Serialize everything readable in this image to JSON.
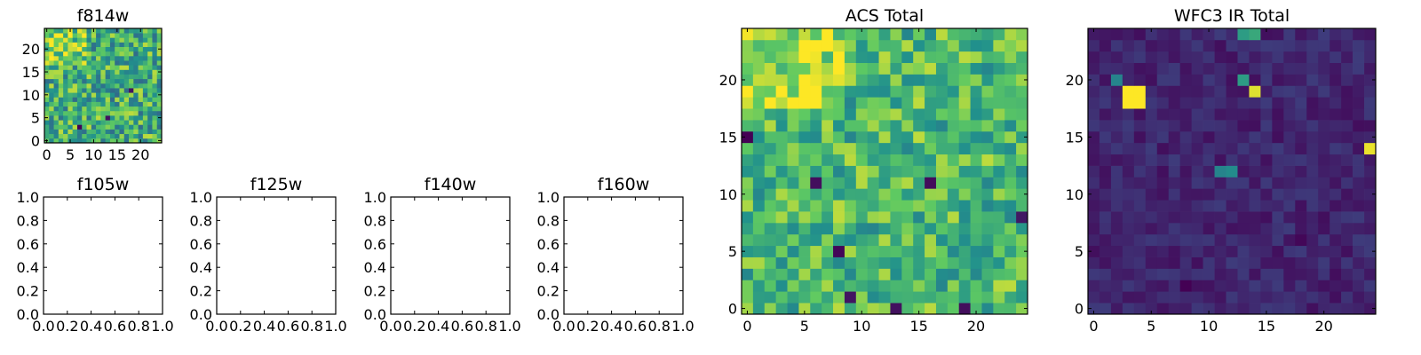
{
  "figure": {
    "colormap": "viridis",
    "colors": {
      "low": "#440154",
      "mid": "#21918c",
      "high": "#fde725",
      "axis": "#000000",
      "background": "#ffffff"
    }
  },
  "chart_data": [
    {
      "id": "f814w",
      "type": "heatmap",
      "title": "f814w",
      "xlim": [
        -0.5,
        24.5
      ],
      "ylim": [
        -0.5,
        24.5
      ],
      "xticks": [
        0,
        5,
        10,
        15,
        20
      ],
      "yticks": [
        0,
        5,
        10,
        15,
        20
      ],
      "xtick_labels": [
        "0",
        "5",
        "10",
        "15",
        "20"
      ],
      "ytick_labels": [
        "0",
        "5",
        "10",
        "15",
        "20"
      ],
      "grid_size": [
        25,
        25
      ],
      "value_range": [
        0,
        1
      ],
      "pattern": "mostly mid-to-high values with a few low pixels; brighter top-left corner",
      "bright_spots": [
        {
          "x": 3,
          "y": 23,
          "value": 1.0
        },
        {
          "x": 4,
          "y": 22,
          "value": 0.96
        },
        {
          "x": 5,
          "y": 21,
          "value": 0.92
        }
      ],
      "dark_spots": [
        {
          "x": 7,
          "y": 3,
          "value": 0.0
        },
        {
          "x": 13,
          "y": 5,
          "value": 0.05
        },
        {
          "x": 18,
          "y": 11,
          "value": 0.06
        }
      ]
    },
    {
      "id": "f105w",
      "type": "heatmap",
      "title": "f105w",
      "xlim": [
        0,
        1
      ],
      "ylim": [
        0,
        1
      ],
      "xticks": [
        0,
        0.2,
        0.4,
        0.6,
        0.8,
        1.0
      ],
      "yticks": [
        0,
        0.2,
        0.4,
        0.6,
        0.8,
        1.0
      ],
      "xtick_labels": [
        "0.0",
        "0.2",
        "0.4",
        "0.6",
        "0.8",
        "1.0"
      ],
      "ytick_labels": [
        "0.0",
        "0.2",
        "0.4",
        "0.6",
        "0.8",
        "1.0"
      ],
      "empty": true
    },
    {
      "id": "f125w",
      "type": "heatmap",
      "title": "f125w",
      "xlim": [
        0,
        1
      ],
      "ylim": [
        0,
        1
      ],
      "xticks": [
        0,
        0.2,
        0.4,
        0.6,
        0.8,
        1.0
      ],
      "yticks": [
        0,
        0.2,
        0.4,
        0.6,
        0.8,
        1.0
      ],
      "xtick_labels": [
        "0.0",
        "0.2",
        "0.4",
        "0.6",
        "0.8",
        "1.0"
      ],
      "ytick_labels": [
        "0.0",
        "0.2",
        "0.4",
        "0.6",
        "0.8",
        "1.0"
      ],
      "empty": true
    },
    {
      "id": "f140w",
      "type": "heatmap",
      "title": "f140w",
      "xlim": [
        0,
        1
      ],
      "ylim": [
        0,
        1
      ],
      "xticks": [
        0,
        0.2,
        0.4,
        0.6,
        0.8,
        1.0
      ],
      "yticks": [
        0,
        0.2,
        0.4,
        0.6,
        0.8,
        1.0
      ],
      "xtick_labels": [
        "0.0",
        "0.2",
        "0.4",
        "0.6",
        "0.8",
        "1.0"
      ],
      "ytick_labels": [
        "0.0",
        "0.2",
        "0.4",
        "0.6",
        "0.8",
        "1.0"
      ],
      "empty": true
    },
    {
      "id": "f160w",
      "type": "heatmap",
      "title": "f160w",
      "xlim": [
        0,
        1
      ],
      "ylim": [
        0,
        1
      ],
      "xticks": [
        0,
        0.2,
        0.4,
        0.6,
        0.8,
        1.0
      ],
      "yticks": [
        0,
        0.2,
        0.4,
        0.6,
        0.8,
        1.0
      ],
      "xtick_labels": [
        "0.0",
        "0.2",
        "0.4",
        "0.6",
        "0.8",
        "1.0"
      ],
      "ytick_labels": [
        "0.0",
        "0.2",
        "0.4",
        "0.6",
        "0.8",
        "1.0"
      ],
      "empty": true
    },
    {
      "id": "acs_total",
      "type": "heatmap",
      "title": "ACS Total",
      "xlim": [
        -0.5,
        24.5
      ],
      "ylim": [
        -0.5,
        24.5
      ],
      "xticks": [
        0,
        5,
        10,
        15,
        20
      ],
      "yticks": [
        0,
        5,
        10,
        15,
        20
      ],
      "xtick_labels": [
        "0",
        "5",
        "10",
        "15",
        "20"
      ],
      "ytick_labels": [
        "0",
        "5",
        "10",
        "15",
        "20"
      ],
      "grid_size": [
        25,
        25
      ],
      "value_range": [
        0,
        1
      ],
      "pattern": "mostly green/yellow with scattered dark pixels; bright cluster near top-left",
      "bright_spots": [
        {
          "x": 5,
          "y": 23,
          "value": 1.0
        },
        {
          "x": 6,
          "y": 22,
          "value": 0.98
        },
        {
          "x": 6,
          "y": 21,
          "value": 0.95
        },
        {
          "x": 7,
          "y": 20,
          "value": 0.92
        }
      ],
      "dark_spots": [
        {
          "x": 0,
          "y": 15,
          "value": 0.0
        },
        {
          "x": 6,
          "y": 11,
          "value": 0.04
        },
        {
          "x": 16,
          "y": 11,
          "value": 0.03
        },
        {
          "x": 8,
          "y": 5,
          "value": 0.02
        },
        {
          "x": 9,
          "y": 1,
          "value": 0.06
        },
        {
          "x": 13,
          "y": 0,
          "value": 0.05
        },
        {
          "x": 19,
          "y": 0,
          "value": 0.04
        },
        {
          "x": 24,
          "y": 8,
          "value": 0.07
        }
      ]
    },
    {
      "id": "wfc3_ir_total",
      "type": "heatmap",
      "title": "WFC3 IR Total",
      "xlim": [
        -0.5,
        24.5
      ],
      "ylim": [
        -0.5,
        24.5
      ],
      "xticks": [
        0,
        5,
        10,
        15,
        20
      ],
      "yticks": [
        0,
        5,
        10,
        15,
        20
      ],
      "xtick_labels": [
        "0",
        "5",
        "10",
        "15",
        "20"
      ],
      "ytick_labels": [
        "0",
        "5",
        "10",
        "15",
        "20"
      ],
      "grid_size": [
        25,
        25
      ],
      "value_range": [
        0,
        1
      ],
      "pattern": "dark purple background with several bright isolated spots",
      "bright_spots": [
        {
          "x": 3,
          "y": 19,
          "value": 1.0
        },
        {
          "x": 4,
          "y": 19,
          "value": 1.0
        },
        {
          "x": 3,
          "y": 18,
          "value": 1.0
        },
        {
          "x": 4,
          "y": 18,
          "value": 1.0
        },
        {
          "x": 2,
          "y": 20,
          "value": 0.45
        },
        {
          "x": 14,
          "y": 19,
          "value": 0.95
        },
        {
          "x": 13,
          "y": 20,
          "value": 0.55
        },
        {
          "x": 24,
          "y": 14,
          "value": 0.97
        },
        {
          "x": 11,
          "y": 12,
          "value": 0.45
        },
        {
          "x": 12,
          "y": 12,
          "value": 0.48
        },
        {
          "x": 14,
          "y": 24,
          "value": 0.6
        },
        {
          "x": 13,
          "y": 24,
          "value": 0.55
        }
      ],
      "dark_spots": [
        {
          "x": 8,
          "y": 2,
          "value": 0.0
        },
        {
          "x": 18,
          "y": 6,
          "value": 0.02
        }
      ]
    }
  ]
}
